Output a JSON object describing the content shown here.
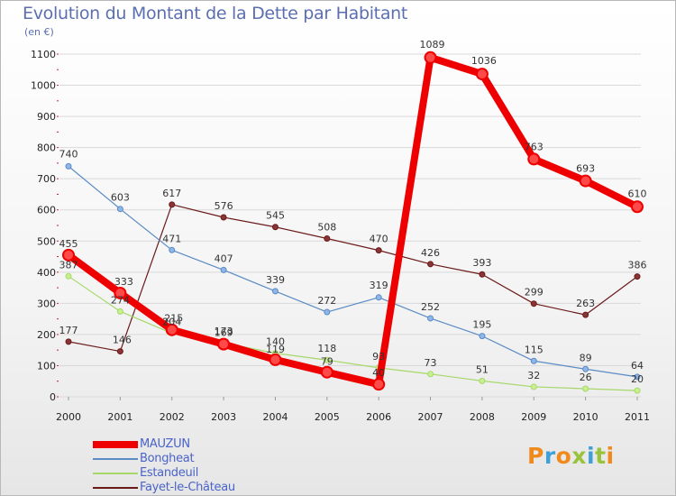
{
  "title": "Evolution du Montant de la Dette par Habitant",
  "unit": "(en €)",
  "brand": "Proxiti",
  "colors": {
    "MAUZUN": "#ee0000",
    "Bongheat": "#5b8bc4",
    "Estandeuil": "#a6d86a",
    "Fayet-le-Château": "#6b1a1a",
    "title": "#5b6fb0",
    "grid": "#d9d9d9",
    "brand_letters": [
      "#f08a1c",
      "#3fa0d8",
      "#f08a1c",
      "#9ac33c",
      "#3fa0d8",
      "#9ac33c",
      "#f08a1c"
    ]
  },
  "chart_data": {
    "type": "line",
    "title": "Evolution du Montant de la Dette par Habitant",
    "ylabel": "(en €)",
    "xlabel": "",
    "x": [
      "2000",
      "2001",
      "2002",
      "2003",
      "2004",
      "2005",
      "2006",
      "2007",
      "2008",
      "2009",
      "2010",
      "2011"
    ],
    "ylim": [
      0,
      1100
    ],
    "yticks": [
      "0",
      "100",
      "200",
      "300",
      "400",
      "500",
      "600",
      "700",
      "800",
      "900",
      "1000",
      "1100"
    ],
    "grid": "horizontal",
    "legend_position": "bottom-left",
    "series": [
      {
        "name": "MAUZUN",
        "values": [
          455,
          333,
          215,
          169,
          119,
          79,
          40,
          1089,
          1036,
          763,
          693,
          610
        ],
        "labels": [
          "455",
          "333",
          "215",
          "169",
          "119",
          "79",
          "40",
          "1089",
          "1036",
          "763",
          "693",
          "610"
        ]
      },
      {
        "name": "Bongheat",
        "values": [
          740,
          603,
          471,
          407,
          339,
          272,
          319,
          252,
          195,
          115,
          89,
          64
        ],
        "labels": [
          "740",
          "603",
          "471",
          "407",
          "339",
          "272",
          "319",
          "252",
          "195",
          "115",
          "89",
          "64"
        ]
      },
      {
        "name": "Estandeuil",
        "values": [
          387,
          274,
          204,
          173,
          140,
          118,
          93,
          73,
          51,
          32,
          26,
          20
        ],
        "labels": [
          "387",
          "274",
          "204",
          "173",
          "140",
          "118",
          "93",
          "73",
          "51",
          "32",
          "26",
          "20"
        ]
      },
      {
        "name": "Fayet-le-Château",
        "values": [
          177,
          146,
          617,
          576,
          545,
          508,
          470,
          426,
          393,
          299,
          263,
          386
        ],
        "labels": [
          "177",
          "146",
          "617",
          "576",
          "545",
          "508",
          "470",
          "426",
          "393",
          "299",
          "263",
          "386"
        ]
      }
    ]
  }
}
